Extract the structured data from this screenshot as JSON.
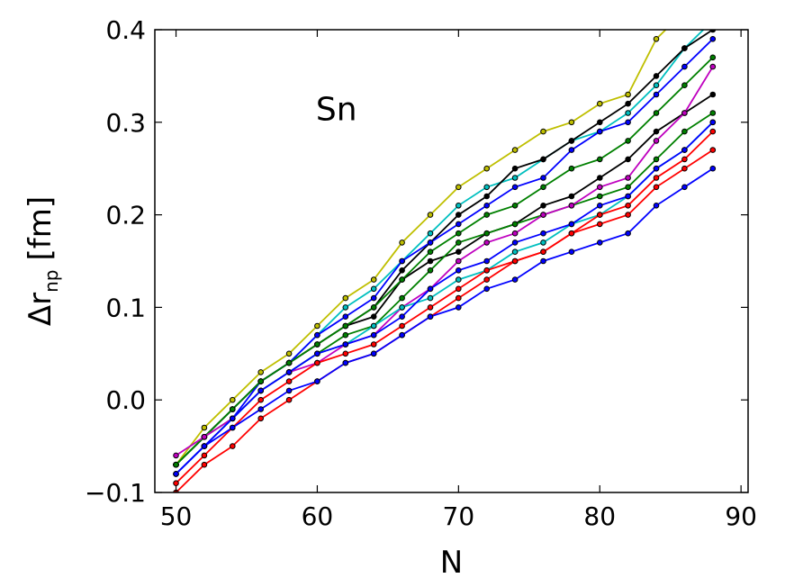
{
  "chart_data": {
    "type": "line",
    "xlabel": "N",
    "ylabel_main": "Δr",
    "ylabel_sub": "np",
    "ylabel_unit": "[fm]",
    "annotation": "Sn",
    "xlim": [
      48.5,
      90.5
    ],
    "ylim": [
      -0.1,
      0.4
    ],
    "xticks": [
      50,
      60,
      70,
      80,
      90
    ],
    "yticks": [
      -0.1,
      0.0,
      0.1,
      0.2,
      0.3,
      0.4
    ],
    "xtick_labels": [
      "50",
      "60",
      "70",
      "80",
      "90"
    ],
    "ytick_labels": [
      "−0.1",
      "0.0",
      "0.1",
      "0.2",
      "0.3",
      "0.4"
    ],
    "grid": false,
    "x": [
      50,
      52,
      54,
      56,
      58,
      60,
      62,
      64,
      66,
      68,
      70,
      72,
      74,
      76,
      78,
      80,
      82,
      84,
      86,
      88
    ],
    "series": [
      {
        "color": "#bfbf00",
        "values": [
          -0.07,
          -0.03,
          0.0,
          0.03,
          0.05,
          0.08,
          0.11,
          0.13,
          0.17,
          0.2,
          0.23,
          0.25,
          0.27,
          0.29,
          0.3,
          0.32,
          0.33,
          0.39,
          0.42,
          0.44
        ]
      },
      {
        "color": "#000000",
        "values": [
          -0.07,
          -0.04,
          -0.01,
          0.02,
          0.04,
          0.06,
          0.08,
          0.09,
          0.13,
          0.15,
          0.16,
          0.18,
          0.19,
          0.21,
          0.22,
          0.24,
          0.26,
          0.29,
          0.31,
          0.33
        ]
      },
      {
        "color": "#00bfbf",
        "values": [
          -0.07,
          -0.04,
          -0.01,
          0.02,
          0.04,
          0.07,
          0.1,
          0.12,
          0.15,
          0.18,
          0.21,
          0.23,
          0.24,
          0.26,
          0.28,
          0.29,
          0.31,
          0.34,
          0.38,
          0.41
        ]
      },
      {
        "color": "#000000",
        "values": [
          -0.07,
          -0.04,
          -0.01,
          0.02,
          0.04,
          0.06,
          0.08,
          0.1,
          0.14,
          0.17,
          0.2,
          0.22,
          0.25,
          0.26,
          0.28,
          0.3,
          0.32,
          0.35,
          0.38,
          0.4
        ]
      },
      {
        "color": "#0000ff",
        "values": [
          -0.08,
          -0.05,
          -0.02,
          0.02,
          0.04,
          0.07,
          0.09,
          0.11,
          0.15,
          0.17,
          0.19,
          0.21,
          0.23,
          0.24,
          0.27,
          0.29,
          0.3,
          0.33,
          0.36,
          0.39
        ]
      },
      {
        "color": "#008000",
        "values": [
          -0.07,
          -0.04,
          -0.01,
          0.02,
          0.04,
          0.06,
          0.08,
          0.1,
          0.13,
          0.16,
          0.18,
          0.2,
          0.21,
          0.23,
          0.25,
          0.26,
          0.28,
          0.31,
          0.34,
          0.37
        ]
      },
      {
        "color": "#008000",
        "values": [
          -0.07,
          -0.04,
          -0.02,
          0.01,
          0.03,
          0.05,
          0.07,
          0.08,
          0.11,
          0.14,
          0.17,
          0.18,
          0.19,
          0.2,
          0.21,
          0.22,
          0.23,
          0.26,
          0.29,
          0.31
        ]
      },
      {
        "color": "#bf00bf",
        "values": [
          -0.06,
          -0.04,
          -0.02,
          0.01,
          0.03,
          0.04,
          0.06,
          0.07,
          0.1,
          0.12,
          0.15,
          0.17,
          0.18,
          0.2,
          0.21,
          0.23,
          0.24,
          0.28,
          0.31,
          0.36
        ]
      },
      {
        "color": "#00bfbf",
        "values": [
          -0.08,
          -0.05,
          -0.02,
          0.01,
          0.03,
          0.05,
          0.06,
          0.08,
          0.1,
          0.11,
          0.13,
          0.14,
          0.16,
          0.17,
          0.19,
          0.2,
          0.22,
          0.25,
          0.27,
          0.3
        ]
      },
      {
        "color": "#0000ff",
        "values": [
          -0.08,
          -0.05,
          -0.02,
          0.01,
          0.03,
          0.05,
          0.06,
          0.07,
          0.09,
          0.12,
          0.14,
          0.15,
          0.17,
          0.18,
          0.19,
          0.21,
          0.22,
          0.25,
          0.27,
          0.3
        ]
      },
      {
        "color": "#ff0000",
        "values": [
          -0.09,
          -0.06,
          -0.03,
          0.0,
          0.02,
          0.04,
          0.05,
          0.06,
          0.08,
          0.1,
          0.12,
          0.14,
          0.15,
          0.16,
          0.18,
          0.2,
          0.21,
          0.24,
          0.26,
          0.29
        ]
      },
      {
        "color": "#ff0000",
        "values": [
          -0.1,
          -0.07,
          -0.05,
          -0.02,
          0.0,
          0.02,
          0.04,
          0.05,
          0.07,
          0.09,
          0.11,
          0.13,
          0.15,
          0.16,
          0.18,
          0.19,
          0.2,
          0.23,
          0.25,
          0.27
        ]
      },
      {
        "color": "#0000ff",
        "values": [
          -0.08,
          -0.05,
          -0.03,
          -0.01,
          0.01,
          0.02,
          0.04,
          0.05,
          0.07,
          0.09,
          0.1,
          0.12,
          0.13,
          0.15,
          0.16,
          0.17,
          0.18,
          0.21,
          0.23,
          0.25
        ]
      }
    ]
  }
}
